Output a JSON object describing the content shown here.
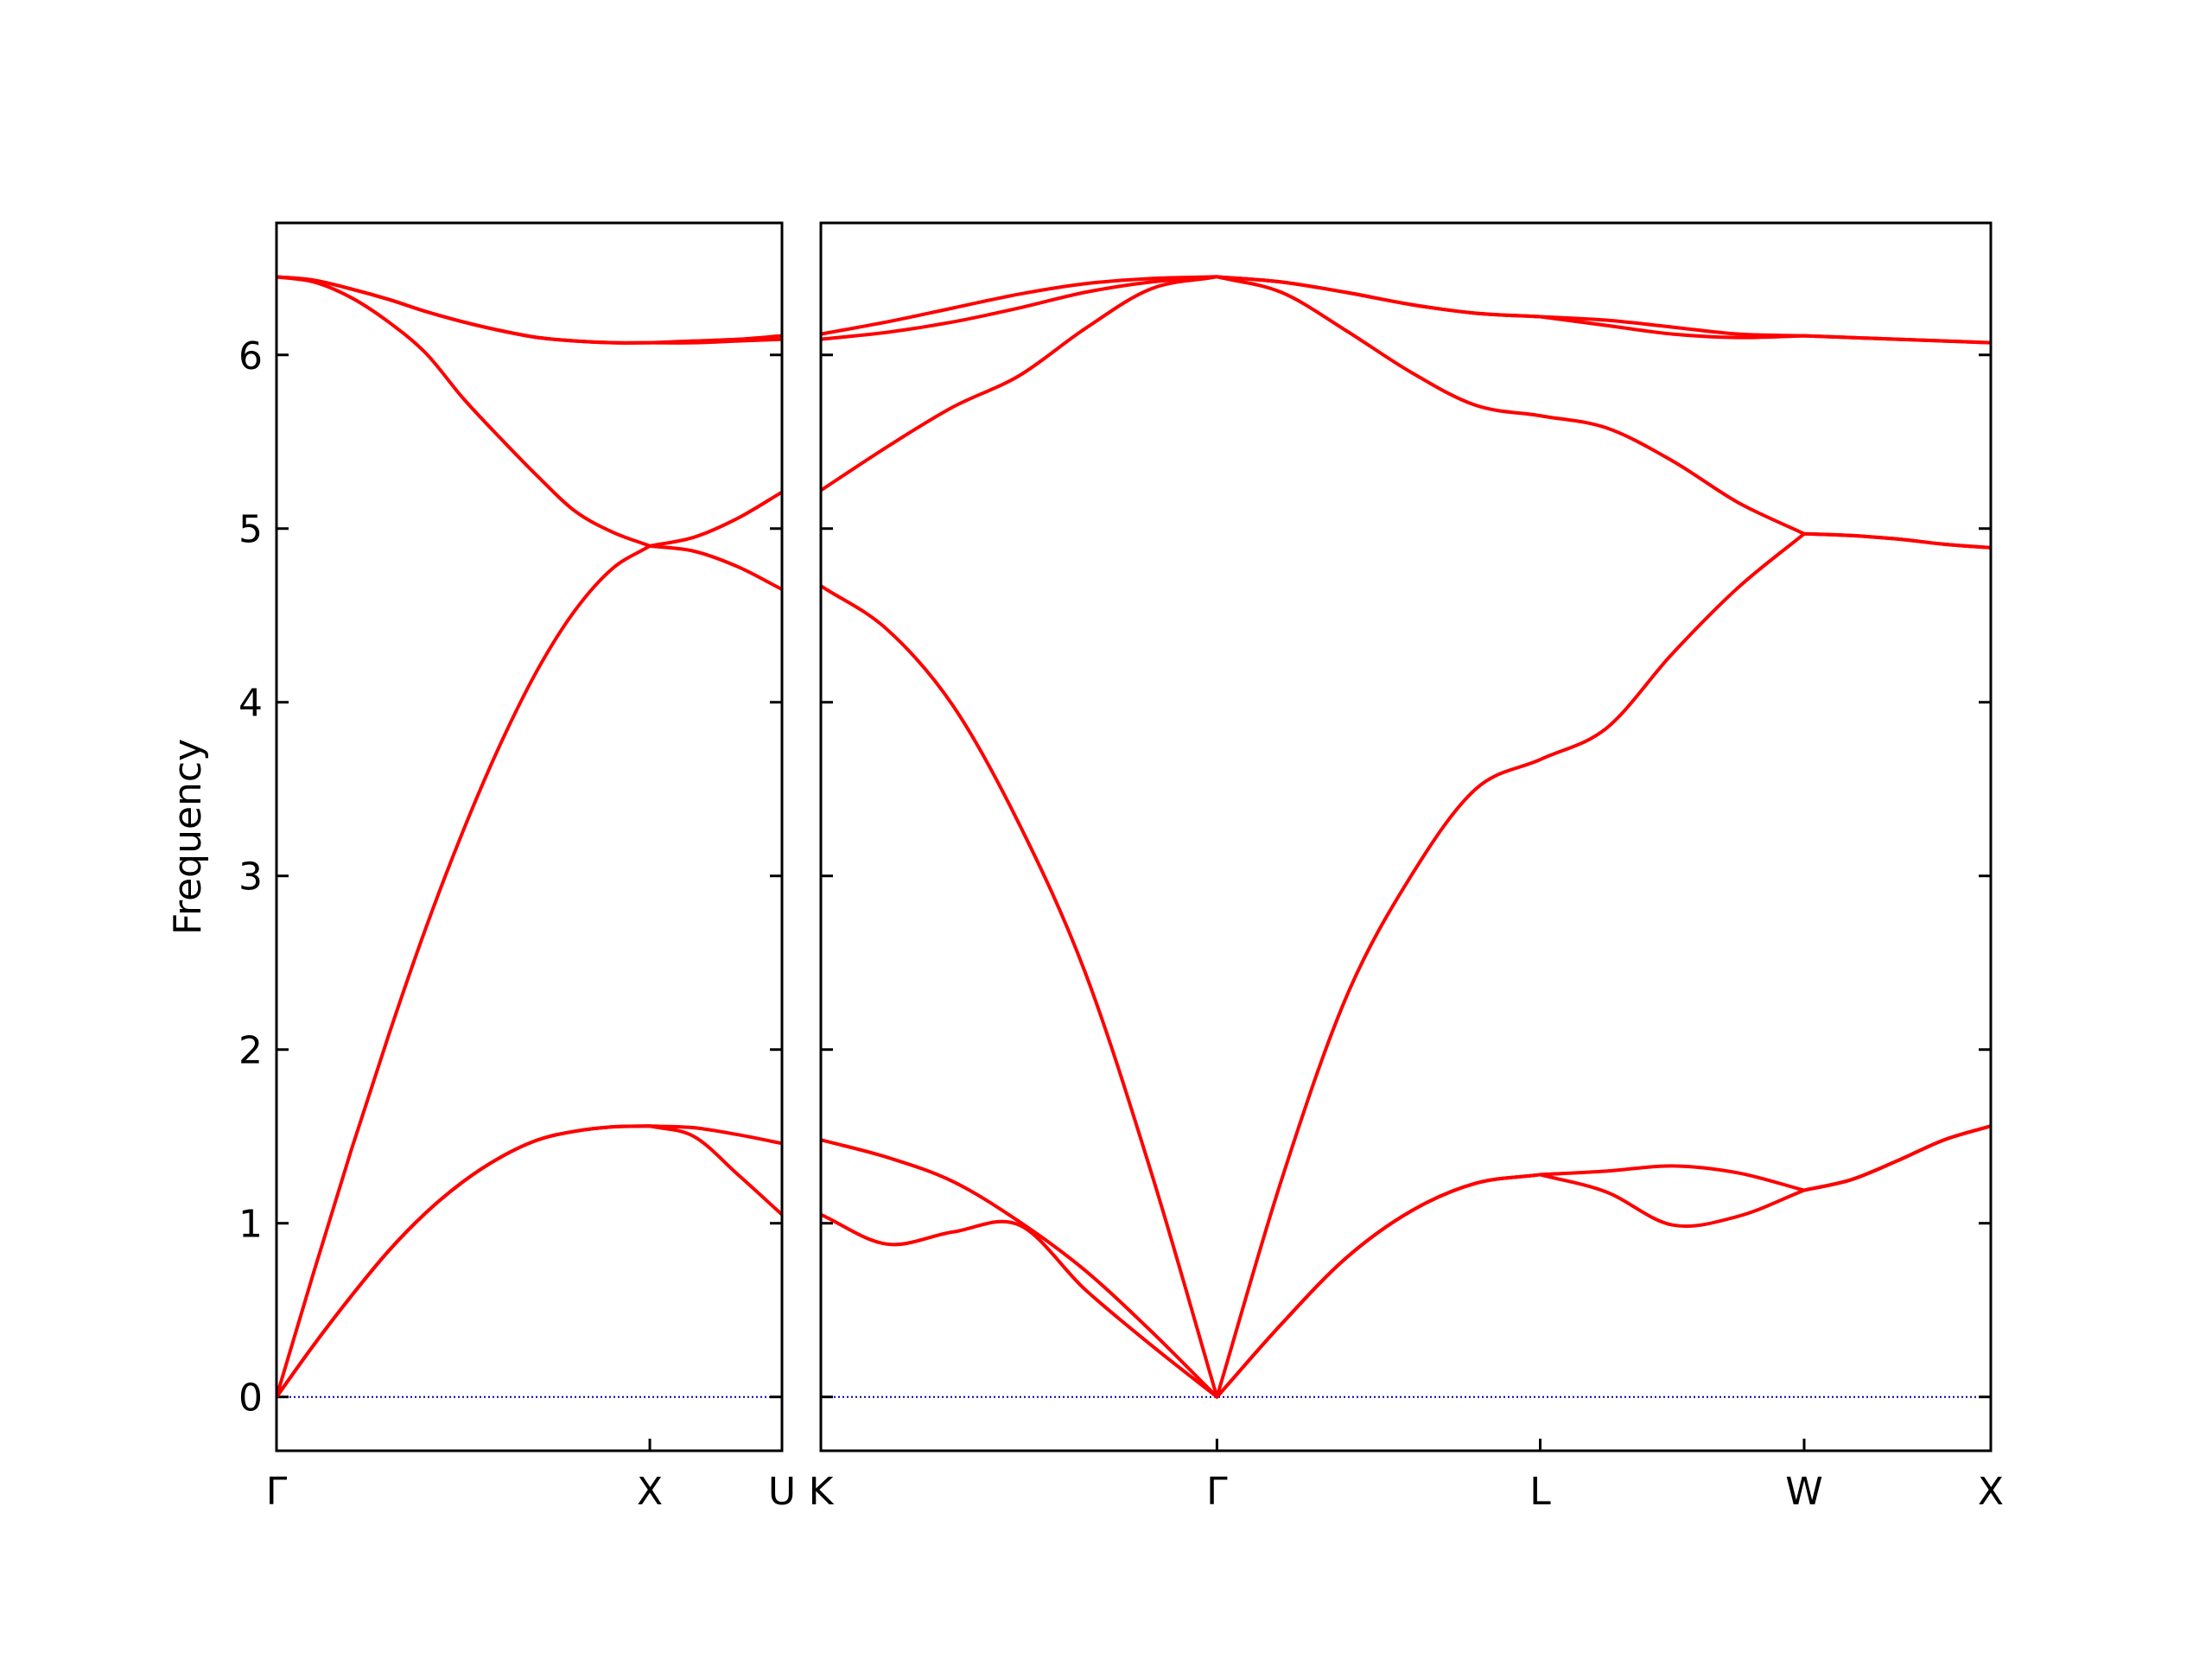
{
  "chart_data": [
    {
      "type": "line",
      "ylabel": "Frequency",
      "x": [
        0,
        0.1,
        0.2,
        0.3,
        0.4,
        0.5,
        0.6,
        0.7,
        0.8,
        0.9,
        1.0,
        1.118,
        1.236,
        1.354
      ],
      "xlim": [
        0,
        1.354
      ],
      "xticks": [
        {
          "value": 0,
          "label": "Γ"
        },
        {
          "value": 1.0,
          "label": "X"
        },
        {
          "value": 1.354,
          "label": "U"
        }
      ],
      "ylim": [
        -0.31,
        6.76
      ],
      "yticks": [
        0,
        1,
        2,
        3,
        4,
        5,
        6
      ],
      "zero_line_color": "#0000aa",
      "series": [
        {
          "color": "#ff0000",
          "values": [
            0,
            0.3,
            0.58,
            0.84,
            1.06,
            1.24,
            1.38,
            1.48,
            1.53,
            1.555,
            1.56,
            1.5,
            1.28,
            1.05
          ]
        },
        {
          "color": "#ff0000",
          "values": [
            0,
            0.3,
            0.58,
            0.84,
            1.06,
            1.24,
            1.38,
            1.48,
            1.53,
            1.555,
            1.56,
            1.55,
            1.51,
            1.46
          ]
        },
        {
          "color": "#ff0000",
          "values": [
            0,
            0.72,
            1.42,
            2.08,
            2.7,
            3.26,
            3.76,
            4.19,
            4.53,
            4.77,
            4.9,
            4.87,
            4.78,
            4.65
          ]
        },
        {
          "color": "#ff0000",
          "values": [
            6.45,
            6.42,
            6.33,
            6.19,
            6.01,
            5.75,
            5.52,
            5.3,
            5.1,
            4.98,
            4.9,
            4.95,
            5.06,
            5.21
          ]
        },
        {
          "color": "#ff0000",
          "values": [
            6.45,
            6.43,
            6.38,
            6.32,
            6.25,
            6.19,
            6.14,
            6.1,
            6.08,
            6.07,
            6.07,
            6.07,
            6.08,
            6.09
          ]
        },
        {
          "color": "#ff0000",
          "values": [
            6.45,
            6.43,
            6.38,
            6.32,
            6.25,
            6.19,
            6.14,
            6.1,
            6.08,
            6.07,
            6.07,
            6.08,
            6.09,
            6.11
          ]
        }
      ]
    },
    {
      "type": "line",
      "x": [
        0,
        0.177,
        0.354,
        0.531,
        0.707,
        0.884,
        1.061,
        1.234,
        1.407,
        1.581,
        1.754,
        1.927,
        2.104,
        2.281,
        2.457,
        2.634,
        2.759,
        2.884,
        3.009,
        3.134
      ],
      "xlim": [
        0,
        3.134
      ],
      "xticks": [
        {
          "value": 0,
          "label": "K"
        },
        {
          "value": 1.061,
          "label": "Γ"
        },
        {
          "value": 1.927,
          "label": "L"
        },
        {
          "value": 2.634,
          "label": "W"
        },
        {
          "value": 3.134,
          "label": "X"
        }
      ],
      "ylim": [
        -0.31,
        6.76
      ],
      "zero_line_color": "#0000aa",
      "series": [
        {
          "color": "#ff0000",
          "values": [
            1.05,
            0.88,
            0.95,
            0.99,
            0.62,
            0.3,
            0,
            0.42,
            0.8,
            1.07,
            1.23,
            1.28,
            1.18,
            0.99,
            1.04,
            1.19,
            1.25,
            1.36,
            1.48,
            1.56
          ]
        },
        {
          "color": "#ff0000",
          "values": [
            1.48,
            1.38,
            1.24,
            1.01,
            0.73,
            0.38,
            0,
            0.42,
            0.8,
            1.07,
            1.23,
            1.28,
            1.3,
            1.33,
            1.29,
            1.19,
            1.25,
            1.36,
            1.48,
            1.56
          ]
        },
        {
          "color": "#ff0000",
          "values": [
            4.67,
            4.42,
            3.98,
            3.3,
            2.45,
            1.3,
            0,
            1.25,
            2.3,
            3.0,
            3.5,
            3.67,
            3.85,
            4.28,
            4.66,
            4.97,
            4.96,
            4.94,
            4.91,
            4.89
          ]
        },
        {
          "color": "#ff0000",
          "values": [
            5.22,
            5.47,
            5.7,
            5.88,
            6.15,
            6.38,
            6.45,
            6.36,
            6.14,
            5.9,
            5.71,
            5.65,
            5.58,
            5.39,
            5.15,
            4.97,
            4.96,
            4.94,
            4.91,
            4.89
          ]
        },
        {
          "color": "#ff0000",
          "values": [
            6.09,
            6.13,
            6.19,
            6.27,
            6.36,
            6.42,
            6.45,
            6.42,
            6.36,
            6.29,
            6.24,
            6.22,
            6.17,
            6.12,
            6.1,
            6.11,
            6.1,
            6.09,
            6.08,
            6.07
          ]
        },
        {
          "color": "#ff0000",
          "values": [
            6.12,
            6.19,
            6.27,
            6.35,
            6.41,
            6.44,
            6.45,
            6.42,
            6.36,
            6.29,
            6.24,
            6.22,
            6.2,
            6.16,
            6.12,
            6.11,
            6.1,
            6.09,
            6.08,
            6.07
          ]
        }
      ]
    }
  ]
}
